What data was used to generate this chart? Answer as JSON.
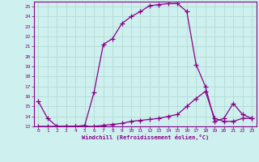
{
  "xlabel": "Windchill (Refroidissement éolien,°C)",
  "bg_color": "#cef0ee",
  "grid_color": "#b8ddd8",
  "line_color": "#880088",
  "x": [
    0,
    1,
    2,
    3,
    4,
    5,
    6,
    7,
    8,
    9,
    10,
    11,
    12,
    13,
    14,
    15,
    16,
    17,
    18,
    19,
    20,
    21,
    22,
    23
  ],
  "curve1": [
    15.5,
    13.8,
    13.0,
    13.0,
    13.0,
    13.1,
    16.4,
    21.2,
    21.8,
    23.3,
    24.0,
    24.5,
    25.1,
    25.2,
    25.3,
    25.3,
    24.5,
    19.2,
    17.0,
    13.5,
    13.8,
    15.3,
    14.2,
    13.8
  ],
  "curve2": [
    13.0,
    13.0,
    13.0,
    13.0,
    13.0,
    13.0,
    13.0,
    13.1,
    13.2,
    13.3,
    13.5,
    13.6,
    13.7,
    13.8,
    14.0,
    14.2,
    15.0,
    15.8,
    16.5,
    13.8,
    13.5,
    13.5,
    13.8,
    13.8
  ],
  "ylim": [
    13,
    25
  ],
  "xlim": [
    0,
    23
  ],
  "yticks": [
    13,
    14,
    15,
    16,
    17,
    18,
    19,
    20,
    21,
    22,
    23,
    24,
    25
  ],
  "xticks": [
    0,
    1,
    2,
    3,
    4,
    5,
    6,
    7,
    8,
    9,
    10,
    11,
    12,
    13,
    14,
    15,
    16,
    17,
    18,
    19,
    20,
    21,
    22,
    23
  ]
}
